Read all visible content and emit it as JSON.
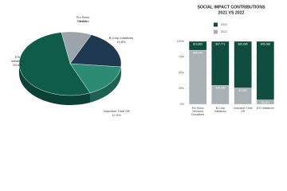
{
  "chart_data": [
    {
      "type": "pie3d",
      "categories": [
        "Pro Bono Services",
        "B Corp Initiatives",
        "Volunteer Time Off",
        "ESI Initiatives"
      ],
      "values": [
        9.6,
        19.8,
        17.0,
        53.6
      ],
      "value_labels": [
        "9.6%",
        "19.8%",
        "17.0%",
        "53.6%"
      ],
      "colors": [
        "#9aa4aa",
        "#1f3a50",
        "#2b8c73",
        "#0f5c4b"
      ]
    },
    {
      "type": "bar",
      "stacking": "percent",
      "title": "SOCIAL IMPACT CONTRIBUTIONS",
      "subtitle": "2021 VS 2022",
      "categories": [
        "Pro Bono Services Donations",
        "B Corp Initiatives",
        "Volunteer Time Off",
        "ESI Initiatives"
      ],
      "series": [
        {
          "name": "2021",
          "color": "#a9b1b5",
          "values": [
            66348,
            16186,
            7052,
            3401
          ],
          "value_labels": [
            "$66,348",
            "$16,186",
            "$7,052",
            "$3,401"
          ]
        },
        {
          "name": "2022",
          "color": "#0f4d3e",
          "values": [
            10800,
            37771,
            20085,
            45188
          ],
          "value_labels": [
            "$10,800",
            "$37,771",
            "$20,085",
            "$45,188"
          ]
        }
      ],
      "ylim": [
        0,
        100
      ],
      "yticks": [
        {
          "value": 0,
          "label": "0%"
        },
        {
          "value": 25,
          "label": "25%"
        },
        {
          "value": 50,
          "label": "50%"
        },
        {
          "value": 75,
          "label": "75%"
        },
        {
          "value": 100,
          "label": "100%"
        }
      ],
      "grid": true
    }
  ]
}
